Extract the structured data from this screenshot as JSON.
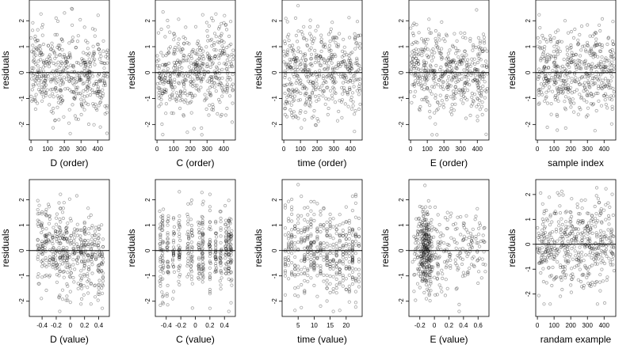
{
  "figure": {
    "ylabel": "residuals",
    "point_color": "#000000",
    "background": "#ffffff"
  },
  "chart_data": [
    {
      "type": "scatter",
      "xlabel": "D (order)",
      "ylabel": "residuals",
      "xlim": [
        -10,
        470
      ],
      "xticks": [
        0,
        100,
        200,
        300,
        400
      ],
      "ylim": [
        -2.6,
        2.8
      ],
      "yticks": [
        -2,
        -1,
        0,
        1,
        2
      ],
      "hline": 0,
      "n": 480,
      "kind": "index",
      "trend": -0.12,
      "seed": 11,
      "points": []
    },
    {
      "type": "scatter",
      "xlabel": "C (order)",
      "ylabel": "residuals",
      "xlim": [
        -10,
        470
      ],
      "xticks": [
        0,
        100,
        200,
        300,
        400
      ],
      "ylim": [
        -2.6,
        2.8
      ],
      "yticks": [
        -2,
        -1,
        0,
        1,
        2
      ],
      "hline": 0,
      "n": 480,
      "kind": "index",
      "trend": 0.05,
      "seed": 23,
      "points": []
    },
    {
      "type": "scatter",
      "xlabel": "time (order)",
      "ylabel": "residuals",
      "xlim": [
        -10,
        470
      ],
      "xticks": [
        0,
        100,
        200,
        300,
        400
      ],
      "ylim": [
        -2.6,
        2.8
      ],
      "yticks": [
        -2,
        -1,
        0,
        1,
        2
      ],
      "hline": 0,
      "n": 480,
      "kind": "index",
      "trend": 0.0,
      "seed": 37,
      "points": []
    },
    {
      "type": "scatter",
      "xlabel": "E (order)",
      "ylabel": "residuals",
      "xlim": [
        -10,
        470
      ],
      "xticks": [
        0,
        100,
        200,
        300,
        400
      ],
      "ylim": [
        -2.6,
        2.8
      ],
      "yticks": [
        -2,
        -1,
        0,
        1,
        2
      ],
      "hline": 0,
      "n": 480,
      "kind": "index",
      "trend": 0.0,
      "seed": 41,
      "points": []
    },
    {
      "type": "scatter",
      "xlabel": "sample index",
      "ylabel": "residuals",
      "xlim": [
        -10,
        470
      ],
      "xticks": [
        0,
        100,
        200,
        300,
        400
      ],
      "ylim": [
        -2.6,
        2.8
      ],
      "yticks": [
        -2,
        -1,
        0,
        1,
        2
      ],
      "hline": 0,
      "n": 480,
      "kind": "index",
      "trend": 0.0,
      "seed": 53,
      "points": []
    },
    {
      "type": "scatter",
      "xlabel": "D (value)",
      "ylabel": "residuals",
      "xlim": [
        -0.58,
        0.55
      ],
      "xticks": [
        -0.4,
        -0.2,
        0.0,
        0.2,
        0.4
      ],
      "ylim": [
        -2.6,
        2.8
      ],
      "yticks": [
        -2,
        -1,
        0,
        1,
        2
      ],
      "hline": 0,
      "n": 480,
      "kind": "D",
      "seed": 61,
      "points": []
    },
    {
      "type": "scatter",
      "xlabel": "C (value)",
      "ylabel": "residuals",
      "xlim": [
        -0.55,
        0.55
      ],
      "xticks": [
        -0.4,
        -0.2,
        0.0,
        0.2,
        0.4
      ],
      "ylim": [
        -2.6,
        2.8
      ],
      "yticks": [
        -2,
        -1,
        0,
        1,
        2
      ],
      "hline": 0,
      "n": 480,
      "kind": "C",
      "seed": 71,
      "points": []
    },
    {
      "type": "scatter",
      "xlabel": "time (value)",
      "ylabel": "residuals",
      "xlim": [
        0,
        25
      ],
      "xticks": [
        5,
        10,
        15,
        20
      ],
      "ylim": [
        -2.6,
        2.8
      ],
      "yticks": [
        -2,
        -1,
        0,
        1,
        2
      ],
      "hline": 0,
      "n": 480,
      "kind": "time",
      "seed": 83,
      "points": []
    },
    {
      "type": "scatter",
      "xlabel": "E (value)",
      "ylabel": "residuals",
      "xlim": [
        -0.35,
        0.75
      ],
      "xticks": [
        -0.2,
        0.0,
        0.2,
        0.4,
        0.6
      ],
      "ylim": [
        -2.6,
        2.8
      ],
      "yticks": [
        -2,
        -1,
        0,
        1,
        2
      ],
      "hline": 0,
      "n": 480,
      "kind": "E",
      "seed": 97,
      "points": []
    },
    {
      "type": "scatter",
      "xlabel": "randam example",
      "ylabel": "residuals",
      "xlim": [
        -10,
        470
      ],
      "xticks": [
        0,
        100,
        200,
        300,
        400
      ],
      "ylim": [
        -2.9,
        2.6
      ],
      "yticks": [
        -2,
        -1,
        0,
        1,
        2
      ],
      "hline": 0,
      "n": 480,
      "kind": "index",
      "trend": 0.0,
      "seed": 109,
      "points": []
    }
  ]
}
